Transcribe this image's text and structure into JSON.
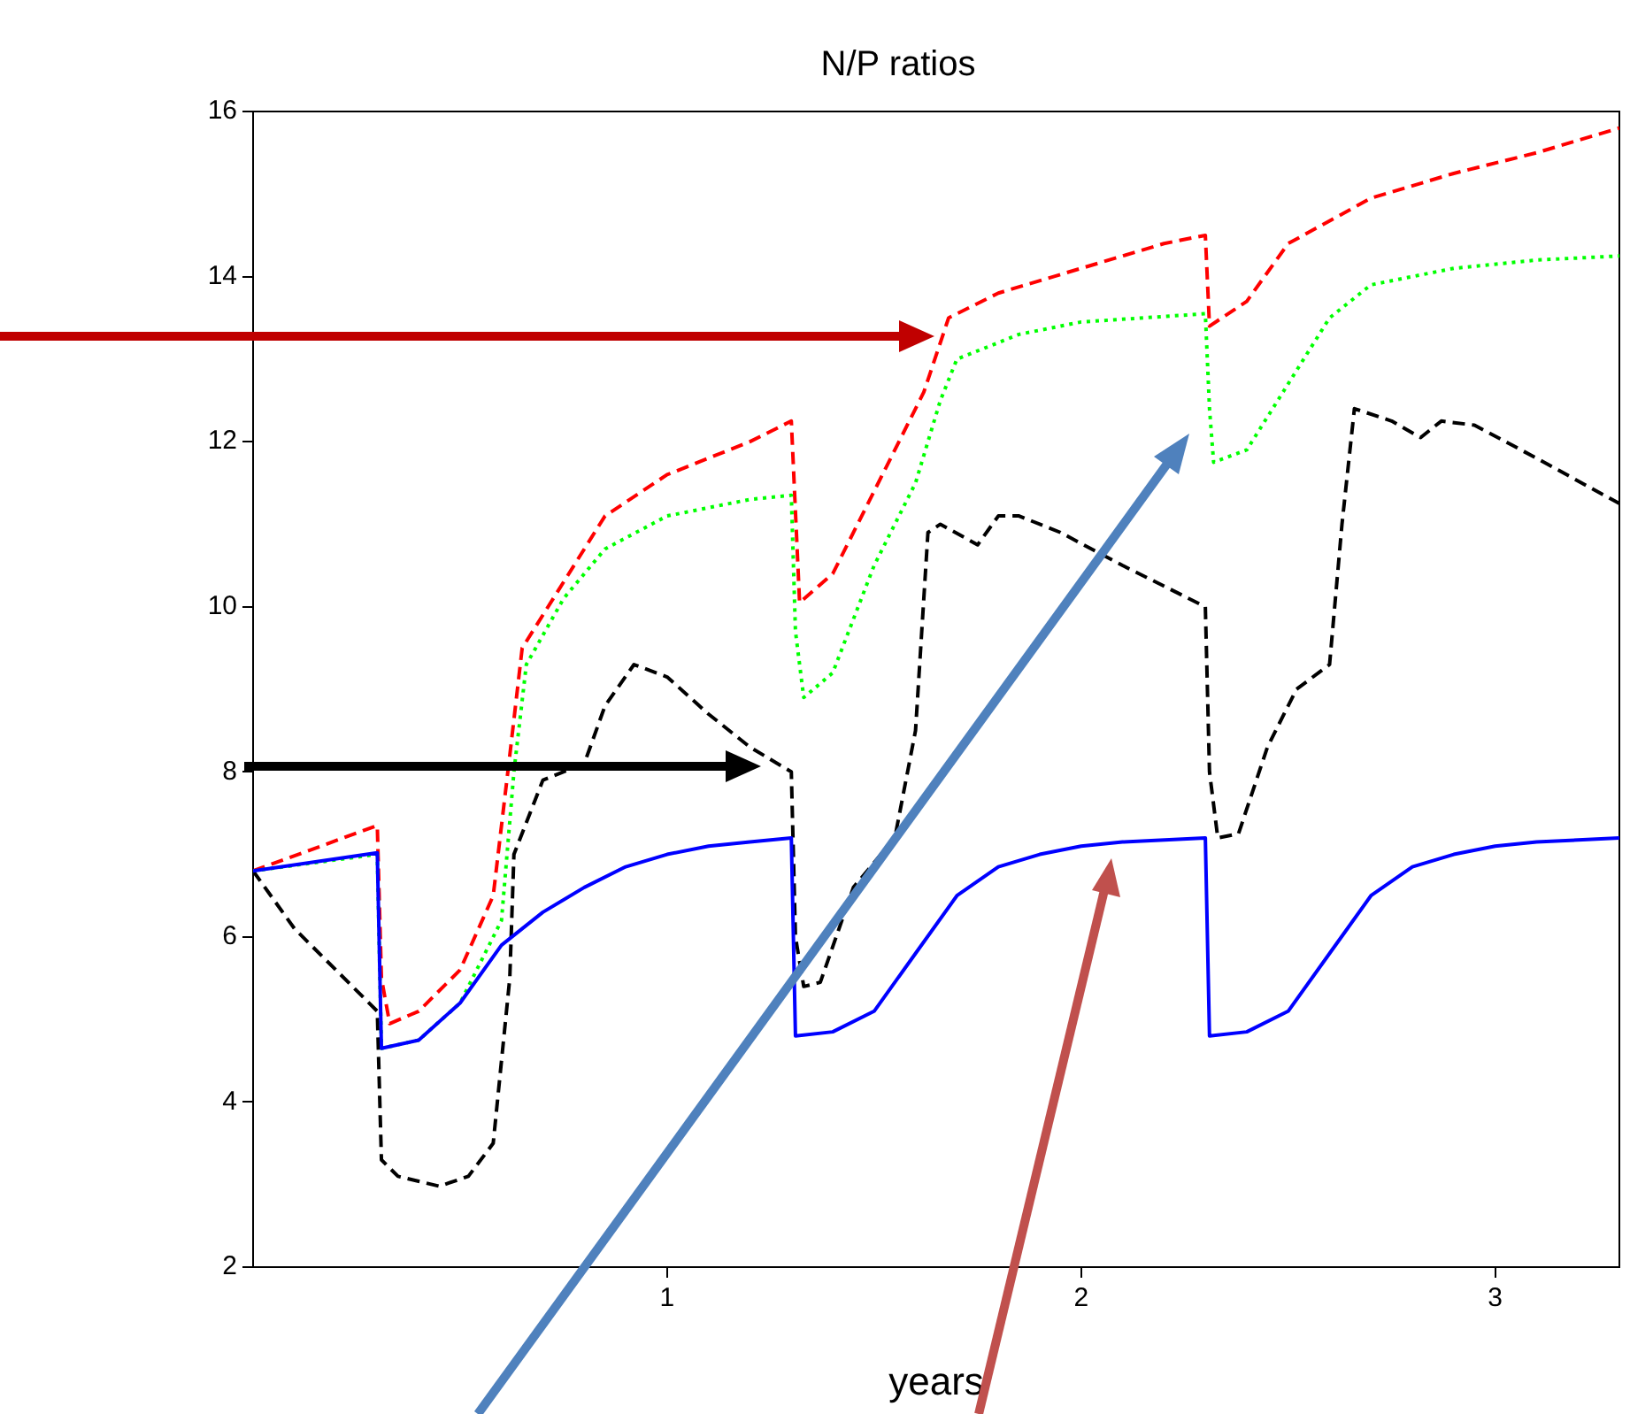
{
  "chart_data": {
    "type": "line",
    "title": "N/P ratios",
    "xlabel": "years",
    "xlim": [
      0,
      3.3
    ],
    "xticks": [
      1,
      2,
      3
    ],
    "ylim": [
      2,
      16
    ],
    "yticks": [
      2,
      4,
      6,
      8,
      10,
      12,
      14,
      16
    ],
    "grid": false,
    "legend": false,
    "marker": "none",
    "series": [
      {
        "color": "#0000ff",
        "line_style": "solid",
        "x": [
          0,
          0.3,
          0.31,
          0.4,
          0.5,
          0.6,
          0.7,
          0.8,
          0.9,
          1.0,
          1.1,
          1.2,
          1.3,
          1.31,
          1.4,
          1.5,
          1.6,
          1.7,
          1.8,
          1.9,
          2.0,
          2.1,
          2.3,
          2.31,
          2.4,
          2.5,
          2.6,
          2.7,
          2.8,
          2.9,
          3.0,
          3.1,
          3.3
        ],
        "values": [
          6.8,
          7.02,
          4.65,
          4.75,
          5.2,
          5.9,
          6.3,
          6.6,
          6.85,
          7.0,
          7.1,
          7.15,
          7.2,
          4.8,
          4.85,
          5.1,
          5.8,
          6.5,
          6.85,
          7.0,
          7.1,
          7.15,
          7.2,
          4.8,
          4.85,
          5.1,
          5.8,
          6.5,
          6.85,
          7.0,
          7.1,
          7.15,
          7.2
        ]
      },
      {
        "color": "#000000",
        "line_style": "dashed",
        "x": [
          0,
          0.1,
          0.3,
          0.31,
          0.35,
          0.45,
          0.52,
          0.58,
          0.62,
          0.63,
          0.7,
          0.8,
          0.85,
          0.92,
          1.0,
          1.1,
          1.2,
          1.3,
          1.31,
          1.33,
          1.37,
          1.45,
          1.55,
          1.6,
          1.63,
          1.66,
          1.75,
          1.8,
          1.85,
          1.95,
          2.1,
          2.3,
          2.31,
          2.33,
          2.38,
          2.45,
          2.52,
          2.6,
          2.63,
          2.66,
          2.75,
          2.82,
          2.87,
          2.95,
          3.1,
          3.3
        ],
        "values": [
          6.8,
          6.1,
          5.1,
          3.3,
          3.1,
          2.98,
          3.1,
          3.5,
          5.5,
          7.0,
          7.9,
          8.1,
          8.8,
          9.3,
          9.15,
          8.7,
          8.3,
          8.0,
          6.0,
          5.4,
          5.45,
          6.6,
          7.2,
          8.5,
          10.9,
          11.0,
          10.75,
          11.1,
          11.1,
          10.9,
          10.5,
          10.0,
          8.0,
          7.2,
          7.25,
          8.3,
          9.0,
          9.3,
          11.0,
          12.4,
          12.25,
          12.05,
          12.25,
          12.2,
          11.8,
          11.25
        ]
      },
      {
        "color": "#00ff00",
        "line_style": "dotted",
        "x": [
          0,
          0.3,
          0.31,
          0.4,
          0.5,
          0.6,
          0.63,
          0.66,
          0.75,
          0.85,
          1.0,
          1.2,
          1.3,
          1.31,
          1.33,
          1.4,
          1.5,
          1.6,
          1.66,
          1.7,
          1.85,
          2.0,
          2.3,
          2.31,
          2.32,
          2.4,
          2.5,
          2.6,
          2.7,
          2.9,
          3.1,
          3.3
        ],
        "values": [
          6.8,
          7.0,
          4.65,
          4.75,
          5.2,
          6.2,
          8.0,
          9.3,
          10.1,
          10.7,
          11.1,
          11.3,
          11.35,
          9.7,
          8.9,
          9.2,
          10.5,
          11.5,
          12.5,
          13.0,
          13.3,
          13.45,
          13.55,
          12.4,
          11.75,
          11.9,
          12.7,
          13.5,
          13.9,
          14.1,
          14.2,
          14.25
        ]
      },
      {
        "color": "#ff0000",
        "line_style": "dashed",
        "x": [
          0,
          0.3,
          0.31,
          0.33,
          0.4,
          0.5,
          0.58,
          0.62,
          0.65,
          0.75,
          0.85,
          1.0,
          1.2,
          1.3,
          1.32,
          1.4,
          1.5,
          1.62,
          1.68,
          1.8,
          2.0,
          2.2,
          2.3,
          2.31,
          2.4,
          2.5,
          2.7,
          2.9,
          3.1,
          3.3
        ],
        "values": [
          6.8,
          7.35,
          5.5,
          4.95,
          5.1,
          5.6,
          6.5,
          8.2,
          9.5,
          10.3,
          11.1,
          11.6,
          12.0,
          12.25,
          10.05,
          10.4,
          11.4,
          12.6,
          13.5,
          13.8,
          14.1,
          14.4,
          14.5,
          13.4,
          13.7,
          14.4,
          14.95,
          15.25,
          15.5,
          15.8
        ]
      }
    ]
  }
}
